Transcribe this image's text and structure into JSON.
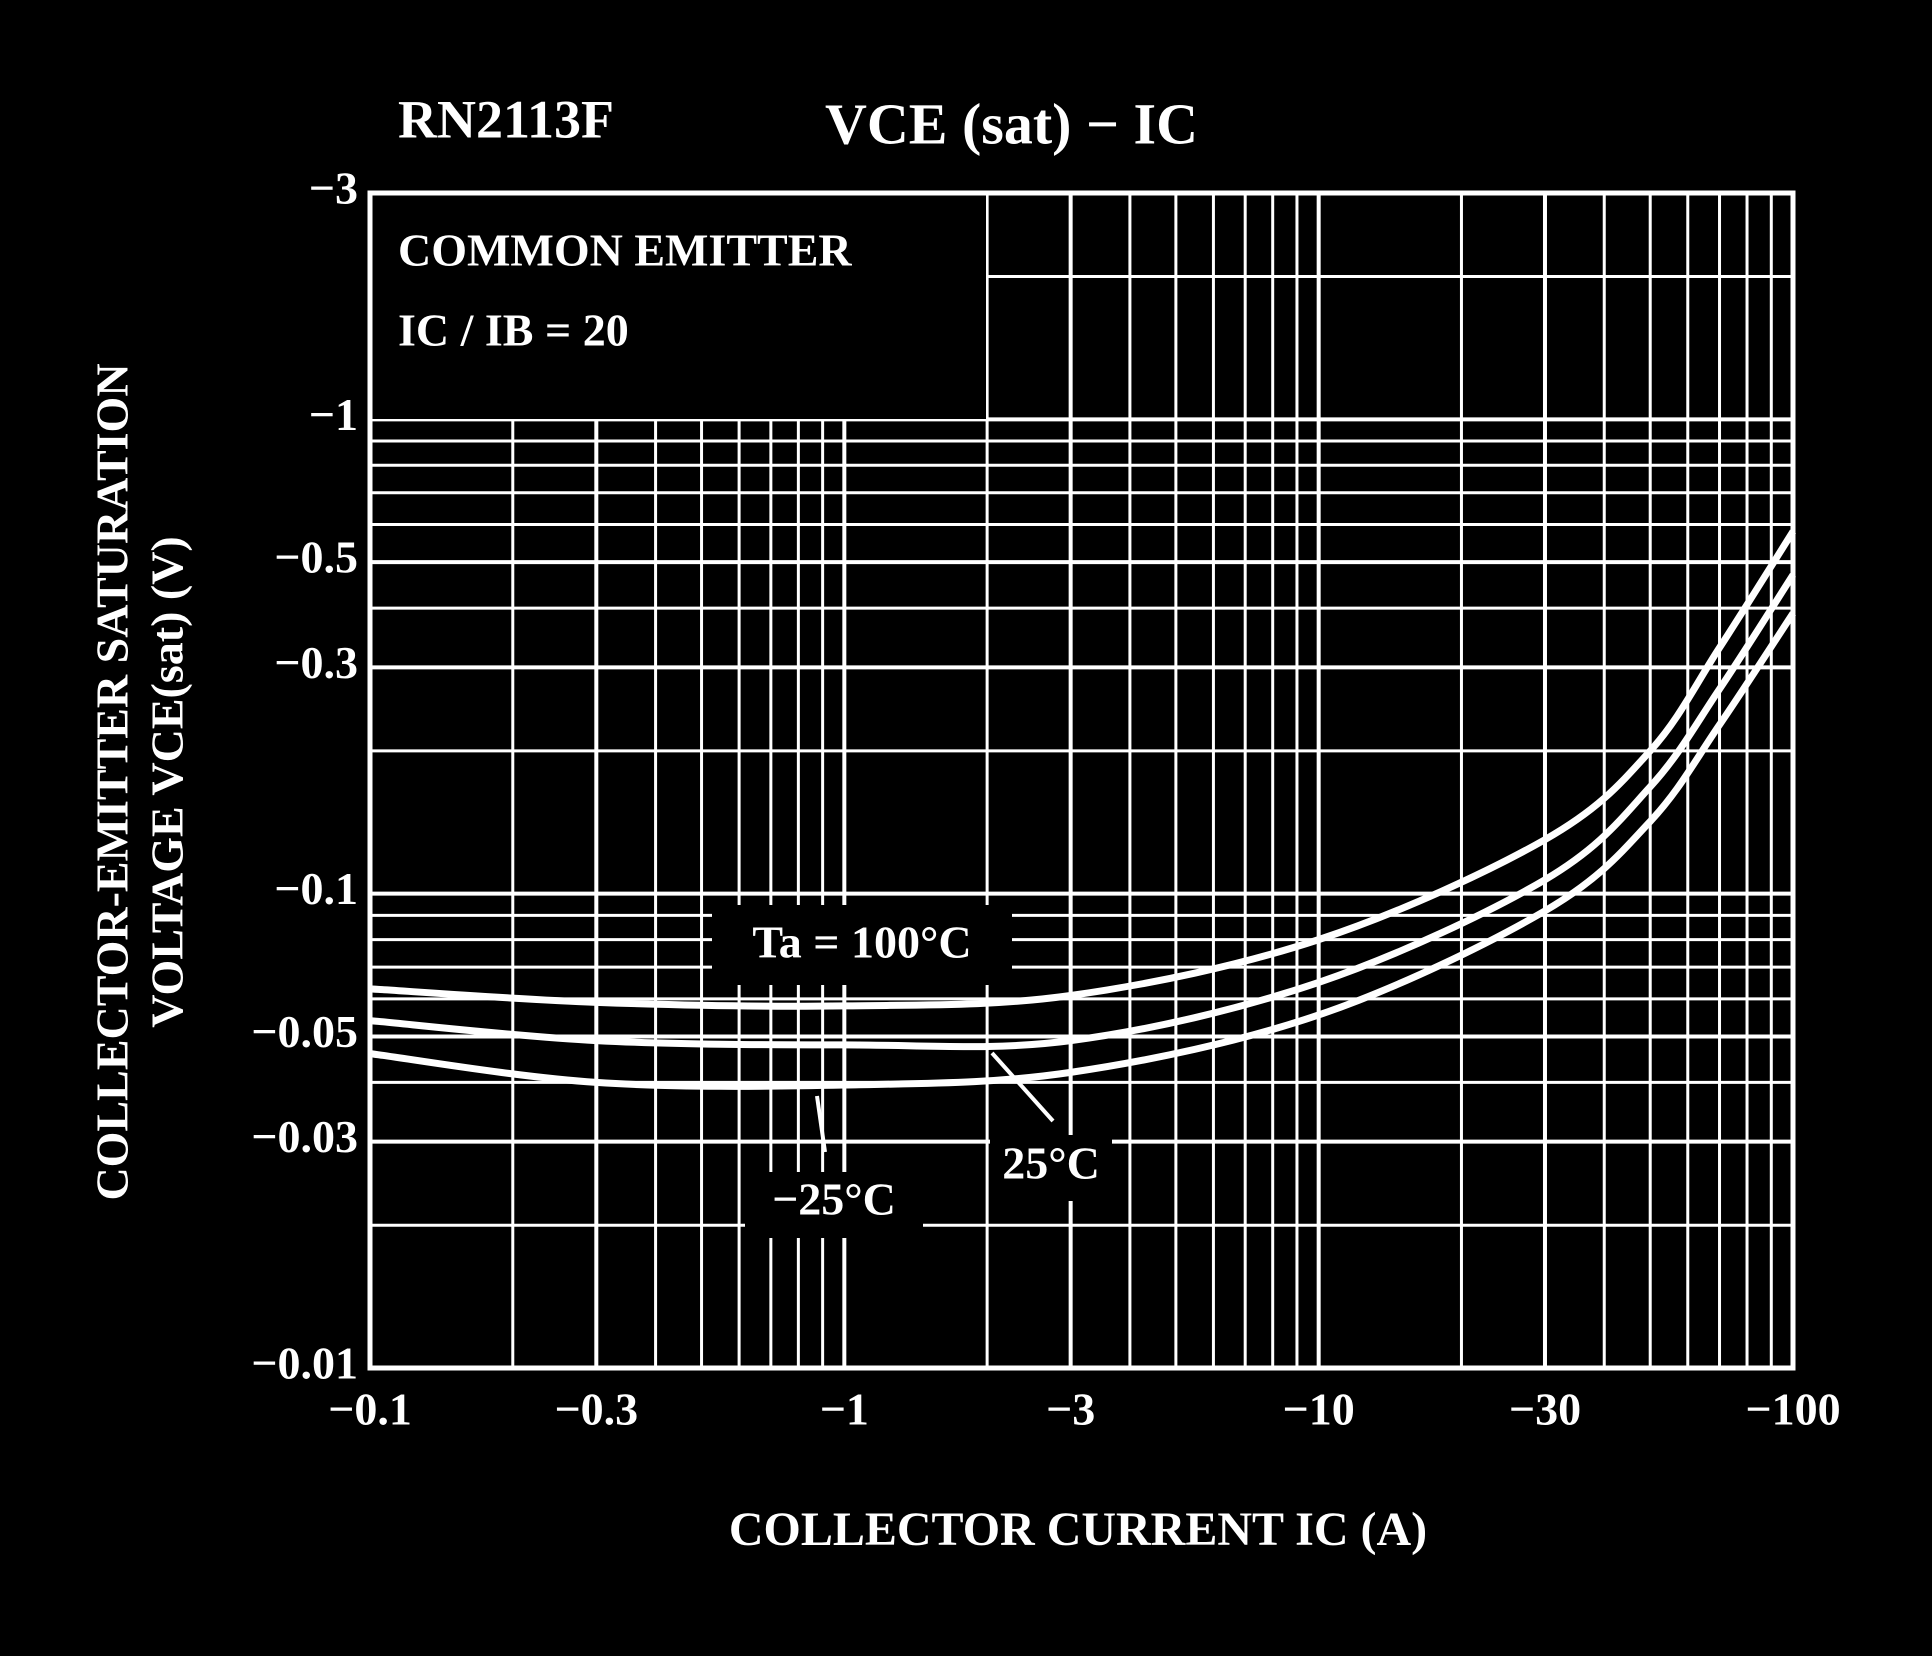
{
  "chart_data": {
    "type": "line",
    "title": "RN2113F",
    "graph_title": "VCE (sat) − IC",
    "notes": [
      "COMMON EMITTER",
      "IC / IB = 20"
    ],
    "xlabel": "COLLECTOR CURRENT   IC   (A)",
    "ylabel": [
      "COLLECTOR-EMITTER SATURATION",
      "VOLTAGE   VCE(sat)   (V)"
    ],
    "xscale": "log",
    "yscale": "log",
    "grid": true,
    "xlim": [
      -0.1,
      -100
    ],
    "ylim": [
      -0.01,
      -3
    ],
    "xticks": [
      {
        "value": -0.1,
        "label": "−0.1"
      },
      {
        "value": -0.3,
        "label": "−0.3"
      },
      {
        "value": -1,
        "label": "−1"
      },
      {
        "value": -3,
        "label": "−3"
      },
      {
        "value": -10,
        "label": "−10"
      },
      {
        "value": -30,
        "label": "−30"
      },
      {
        "value": -100,
        "label": "−100"
      }
    ],
    "yticks": [
      {
        "value": -0.01,
        "label": "−0.01"
      },
      {
        "value": -0.03,
        "label": "−0.03"
      },
      {
        "value": -0.05,
        "label": "−0.05"
      },
      {
        "value": -0.1,
        "label": "−0.1"
      },
      {
        "value": -0.3,
        "label": "−0.3"
      },
      {
        "value": -0.5,
        "label": "−0.5"
      },
      {
        "value": -1,
        "label": "−1"
      },
      {
        "value": -3,
        "label": "−3"
      }
    ],
    "xminorticks": [
      -0.2,
      -0.4,
      -0.5,
      -0.6,
      -0.7,
      -0.8,
      -0.9,
      -2,
      -4,
      -5,
      -6,
      -7,
      -8,
      -9,
      -20,
      -40,
      -50,
      -60,
      -70,
      -80,
      -90
    ],
    "yminorticks": [
      -0.02,
      -0.04,
      -0.06,
      -0.07,
      -0.08,
      -0.09,
      -0.2,
      -0.4,
      -0.6,
      -0.7,
      -0.8,
      -0.9,
      -2
    ],
    "x": [
      -0.1,
      -0.3,
      -1,
      -3,
      -10,
      -30,
      -50,
      -70,
      -100
    ],
    "series": [
      {
        "name": "Ta = 100°C",
        "color": "#ffffff",
        "values": [
          -0.063,
          -0.059,
          -0.058,
          -0.061,
          -0.08,
          -0.13,
          -0.2,
          -0.33,
          -0.58
        ]
      },
      {
        "name": "25°C",
        "color": "#ffffff",
        "values": [
          -0.054,
          -0.049,
          -0.048,
          -0.049,
          -0.065,
          -0.107,
          -0.168,
          -0.27,
          -0.47
        ]
      },
      {
        "name": "−25°C",
        "color": "#ffffff",
        "values": [
          -0.046,
          -0.04,
          -0.0395,
          -0.042,
          -0.0555,
          -0.092,
          -0.142,
          -0.227,
          -0.39
        ]
      }
    ]
  }
}
